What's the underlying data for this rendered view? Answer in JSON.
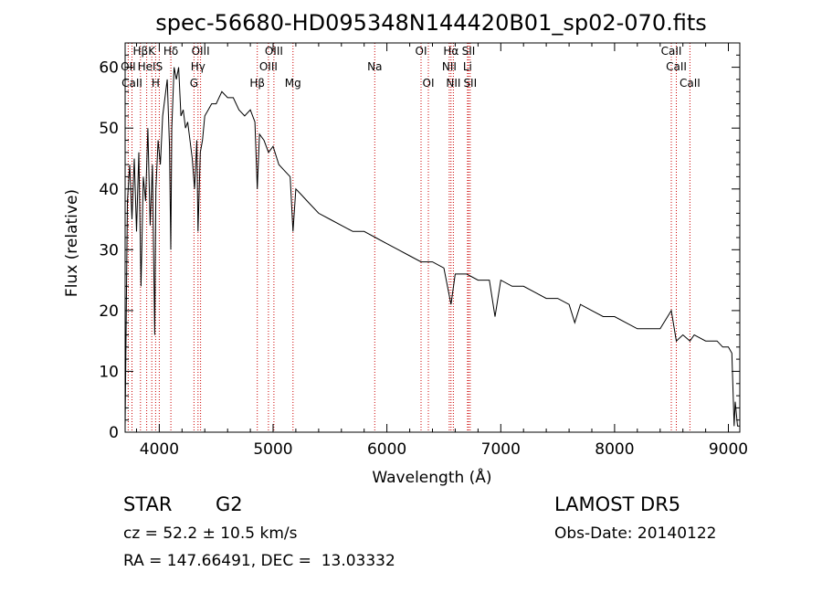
{
  "chart_data": {
    "type": "line",
    "title": "spec-56680-HD095348N144420B01_sp02-070.fits",
    "xlabel": "Wavelength (Å)",
    "ylabel": "Flux (relative)",
    "xlim": [
      3700,
      9100
    ],
    "ylim": [
      0,
      64
    ],
    "xticks": [
      4000,
      5000,
      6000,
      7000,
      8000,
      9000
    ],
    "yticks": [
      0,
      10,
      20,
      30,
      40,
      50,
      60
    ],
    "series": [
      {
        "x": [
          3700,
          3720,
          3740,
          3760,
          3780,
          3800,
          3820,
          3840,
          3860,
          3880,
          3900,
          3920,
          3940,
          3960,
          3970,
          3990,
          4010,
          4030,
          4050,
          4070,
          4090,
          4101,
          4110,
          4130,
          4150,
          4170,
          4190,
          4210,
          4230,
          4250,
          4270,
          4290,
          4310,
          4330,
          4340,
          4360,
          4380,
          4400,
          4430,
          4460,
          4500,
          4550,
          4600,
          4650,
          4700,
          4750,
          4800,
          4840,
          4861,
          4880,
          4920,
          4960,
          5000,
          5050,
          5100,
          5150,
          5175,
          5200,
          5250,
          5300,
          5400,
          5500,
          5600,
          5700,
          5800,
          5900,
          6000,
          6100,
          6200,
          6300,
          6400,
          6500,
          6563,
          6600,
          6700,
          6800,
          6900,
          6950,
          7000,
          7100,
          7200,
          7300,
          7400,
          7500,
          7600,
          7650,
          7700,
          7800,
          7900,
          8000,
          8100,
          8200,
          8300,
          8400,
          8498,
          8542,
          8600,
          8662,
          8700,
          8800,
          8900,
          8950,
          9000,
          9030,
          9050,
          9060,
          9080,
          9100
        ],
        "values": [
          1,
          38,
          44,
          35,
          45,
          33,
          46,
          24,
          42,
          38,
          50,
          34,
          44,
          16,
          40,
          48,
          44,
          52,
          55,
          58,
          47,
          30,
          50,
          60,
          58,
          60,
          52,
          53,
          50,
          51,
          48,
          45,
          40,
          48,
          33,
          46,
          48,
          52,
          53,
          54,
          54,
          56,
          55,
          55,
          53,
          52,
          53,
          51,
          40,
          49,
          48,
          46,
          47,
          44,
          43,
          42,
          33,
          40,
          39,
          38,
          36,
          35,
          34,
          33,
          33,
          32,
          31,
          30,
          29,
          28,
          28,
          27,
          21,
          26,
          26,
          25,
          25,
          19,
          25,
          24,
          24,
          23,
          22,
          22,
          21,
          18,
          21,
          20,
          19,
          19,
          18,
          17,
          17,
          17,
          20,
          15,
          16,
          15,
          16,
          15,
          15,
          14,
          14,
          13,
          1,
          5,
          1,
          1
        ]
      }
    ],
    "line_labels": [
      {
        "label": "Hβ",
        "wl": 3835,
        "row": 1
      },
      {
        "label": "K",
        "wl": 3934,
        "row": 1
      },
      {
        "label": "Hδ",
        "wl": 4102,
        "row": 1
      },
      {
        "label": "OIII",
        "wl": 4363,
        "row": 1
      },
      {
        "label": "OIII",
        "wl": 5007,
        "row": 1
      },
      {
        "label": "OI",
        "wl": 6300,
        "row": 1
      },
      {
        "label": "Hα",
        "wl": 6563,
        "row": 1
      },
      {
        "label": "SII",
        "wl": 6717,
        "row": 1
      },
      {
        "label": "CaII",
        "wl": 8498,
        "row": 1
      },
      {
        "label": "OII",
        "wl": 3727,
        "row": 2
      },
      {
        "label": "HeI",
        "wl": 3889,
        "row": 2
      },
      {
        "label": "S",
        "wl": 4000,
        "row": 2
      },
      {
        "label": "Hγ",
        "wl": 4340,
        "row": 2
      },
      {
        "label": "OIII",
        "wl": 4959,
        "row": 2
      },
      {
        "label": "Na",
        "wl": 5893,
        "row": 2
      },
      {
        "label": "NII",
        "wl": 6548,
        "row": 2
      },
      {
        "label": "Li",
        "wl": 6708,
        "row": 2
      },
      {
        "label": "CaII",
        "wl": 8542,
        "row": 2
      },
      {
        "label": "CaII",
        "wl": 3760,
        "row": 3
      },
      {
        "label": "H",
        "wl": 3968,
        "row": 3
      },
      {
        "label": "G",
        "wl": 4305,
        "row": 3
      },
      {
        "label": "Hβ",
        "wl": 4861,
        "row": 3
      },
      {
        "label": "Mg",
        "wl": 5175,
        "row": 3
      },
      {
        "label": "OI",
        "wl": 6364,
        "row": 3
      },
      {
        "label": "NII",
        "wl": 6584,
        "row": 3
      },
      {
        "label": "SII",
        "wl": 6731,
        "row": 3
      },
      {
        "label": "CaII",
        "wl": 8662,
        "row": 3
      }
    ],
    "line_marks": [
      3727,
      3760,
      3835,
      3889,
      3934,
      3968,
      4000,
      4102,
      4305,
      4340,
      4363,
      4861,
      4959,
      5007,
      5175,
      5893,
      6300,
      6364,
      6548,
      6563,
      6584,
      6708,
      6717,
      6731,
      8498,
      8542,
      8662
    ],
    "line_mark_color": "#cc0000"
  },
  "info": {
    "object_class": "STAR",
    "subclass": "G2",
    "survey": "LAMOST DR5",
    "cz": "cz = 52.2 ± 10.5 km/s",
    "obs_date": "Obs-Date: 20140122",
    "coords": "RA = 147.66491, DEC =  13.03332"
  }
}
